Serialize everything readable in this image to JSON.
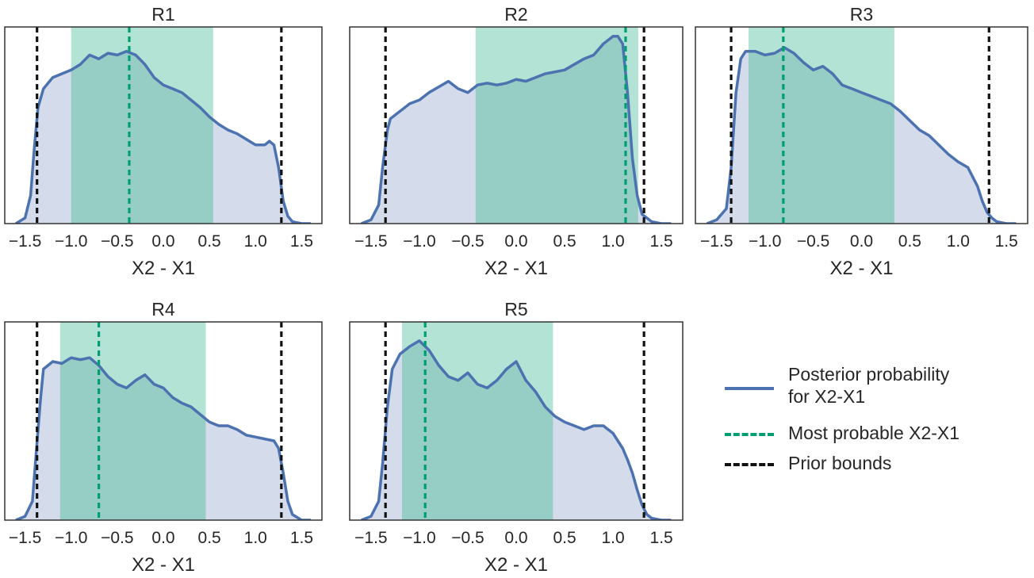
{
  "chart_data": [
    {
      "type": "area",
      "title": "R1",
      "xlabel": "X2 - X1",
      "xticks": [
        "−1.5",
        "−1.0",
        "−0.5",
        "0.0",
        "0.5",
        "1.0",
        "1.5"
      ],
      "xlim": [
        -1.72,
        1.72
      ],
      "ylim": [
        0,
        1.05
      ],
      "x": [
        -1.6,
        -1.5,
        -1.44,
        -1.4,
        -1.36,
        -1.3,
        -1.2,
        -1.1,
        -1.0,
        -0.9,
        -0.8,
        -0.7,
        -0.6,
        -0.5,
        -0.4,
        -0.35,
        -0.3,
        -0.2,
        -0.1,
        0.0,
        0.1,
        0.2,
        0.3,
        0.4,
        0.5,
        0.6,
        0.7,
        0.8,
        0.9,
        1.0,
        1.1,
        1.15,
        1.2,
        1.25,
        1.3,
        1.35,
        1.4,
        1.5,
        1.6
      ],
      "y": [
        0.0,
        0.03,
        0.15,
        0.4,
        0.62,
        0.72,
        0.78,
        0.8,
        0.82,
        0.85,
        0.9,
        0.88,
        0.91,
        0.9,
        0.92,
        0.91,
        0.9,
        0.85,
        0.78,
        0.74,
        0.72,
        0.7,
        0.66,
        0.62,
        0.57,
        0.53,
        0.5,
        0.48,
        0.45,
        0.42,
        0.42,
        0.44,
        0.42,
        0.3,
        0.12,
        0.04,
        0.01,
        0.0,
        0.0
      ],
      "shaded_interval": [
        -1.0,
        0.54
      ],
      "most_probable": -0.37,
      "prior_bounds": [
        -1.37,
        1.28
      ]
    },
    {
      "type": "area",
      "title": "R2",
      "xlabel": "X2 - X1",
      "xticks": [
        "−1.5",
        "−1.0",
        "−0.5",
        "0.0",
        "0.5",
        "1.0",
        "1.5"
      ],
      "xlim": [
        -1.72,
        1.72
      ],
      "ylim": [
        0,
        1.05
      ],
      "x": [
        -1.6,
        -1.5,
        -1.42,
        -1.38,
        -1.33,
        -1.3,
        -1.2,
        -1.1,
        -1.0,
        -0.9,
        -0.8,
        -0.7,
        -0.6,
        -0.5,
        -0.4,
        -0.3,
        -0.2,
        -0.1,
        0.0,
        0.1,
        0.2,
        0.3,
        0.4,
        0.5,
        0.6,
        0.7,
        0.8,
        0.9,
        1.0,
        1.05,
        1.1,
        1.15,
        1.2,
        1.25,
        1.3,
        1.4,
        1.5,
        1.6
      ],
      "y": [
        0.0,
        0.02,
        0.1,
        0.3,
        0.5,
        0.56,
        0.6,
        0.64,
        0.66,
        0.7,
        0.73,
        0.76,
        0.72,
        0.7,
        0.74,
        0.75,
        0.74,
        0.75,
        0.77,
        0.76,
        0.78,
        0.8,
        0.81,
        0.82,
        0.85,
        0.88,
        0.9,
        0.96,
        1.0,
        1.0,
        0.96,
        0.7,
        0.35,
        0.15,
        0.05,
        0.01,
        0.0,
        0.0
      ],
      "shaded_interval": [
        -0.42,
        1.26
      ],
      "most_probable": 1.13,
      "prior_bounds": [
        -1.35,
        1.32
      ]
    },
    {
      "type": "area",
      "title": "R3",
      "xlabel": "X2 - X1",
      "xticks": [
        "−1.5",
        "−1.0",
        "−0.5",
        "0.0",
        "0.5",
        "1.0",
        "1.5"
      ],
      "xlim": [
        -1.72,
        1.72
      ],
      "ylim": [
        0,
        1.05
      ],
      "x": [
        -1.6,
        -1.5,
        -1.4,
        -1.35,
        -1.3,
        -1.25,
        -1.2,
        -1.1,
        -1.0,
        -0.9,
        -0.8,
        -0.7,
        -0.6,
        -0.5,
        -0.4,
        -0.3,
        -0.2,
        -0.1,
        0.0,
        0.1,
        0.2,
        0.3,
        0.4,
        0.5,
        0.6,
        0.7,
        0.8,
        0.9,
        1.0,
        1.1,
        1.2,
        1.25,
        1.3,
        1.35,
        1.4,
        1.5,
        1.6
      ],
      "y": [
        0.0,
        0.02,
        0.08,
        0.3,
        0.7,
        0.88,
        0.92,
        0.92,
        0.9,
        0.91,
        0.94,
        0.91,
        0.86,
        0.82,
        0.84,
        0.8,
        0.74,
        0.72,
        0.7,
        0.68,
        0.66,
        0.64,
        0.6,
        0.55,
        0.5,
        0.47,
        0.42,
        0.37,
        0.33,
        0.3,
        0.2,
        0.12,
        0.06,
        0.03,
        0.01,
        0.0,
        0.0
      ],
      "shaded_interval": [
        -1.17,
        0.34
      ],
      "most_probable": -0.81,
      "prior_bounds": [
        -1.35,
        1.32
      ]
    },
    {
      "type": "area",
      "title": "R4",
      "xlabel": "X2 - X1",
      "xticks": [
        "−1.5",
        "−1.0",
        "−0.5",
        "0.0",
        "0.5",
        "1.0",
        "1.5"
      ],
      "xlim": [
        -1.72,
        1.72
      ],
      "ylim": [
        0,
        1.05
      ],
      "x": [
        -1.6,
        -1.5,
        -1.42,
        -1.38,
        -1.33,
        -1.3,
        -1.2,
        -1.1,
        -1.0,
        -0.9,
        -0.8,
        -0.7,
        -0.6,
        -0.5,
        -0.4,
        -0.3,
        -0.2,
        -0.1,
        0.0,
        0.1,
        0.2,
        0.3,
        0.4,
        0.5,
        0.6,
        0.7,
        0.8,
        0.9,
        1.0,
        1.1,
        1.2,
        1.25,
        1.3,
        1.35,
        1.4,
        1.5,
        1.6
      ],
      "y": [
        0.0,
        0.02,
        0.1,
        0.35,
        0.65,
        0.8,
        0.84,
        0.83,
        0.86,
        0.85,
        0.86,
        0.82,
        0.76,
        0.72,
        0.7,
        0.74,
        0.77,
        0.72,
        0.7,
        0.65,
        0.62,
        0.6,
        0.56,
        0.52,
        0.5,
        0.5,
        0.48,
        0.45,
        0.44,
        0.43,
        0.42,
        0.38,
        0.25,
        0.1,
        0.03,
        0.0,
        0.0
      ],
      "shaded_interval": [
        -1.12,
        0.46
      ],
      "most_probable": -0.7,
      "prior_bounds": [
        -1.37,
        1.28
      ]
    },
    {
      "type": "area",
      "title": "R5",
      "xlabel": "X2 - X1",
      "xticks": [
        "−1.5",
        "−1.0",
        "−0.5",
        "0.0",
        "0.5",
        "1.0",
        "1.5"
      ],
      "xlim": [
        -1.72,
        1.72
      ],
      "ylim": [
        0,
        1.05
      ],
      "x": [
        -1.6,
        -1.5,
        -1.42,
        -1.38,
        -1.33,
        -1.28,
        -1.2,
        -1.1,
        -1.0,
        -0.9,
        -0.8,
        -0.7,
        -0.6,
        -0.5,
        -0.4,
        -0.3,
        -0.2,
        -0.1,
        0.0,
        0.1,
        0.2,
        0.3,
        0.4,
        0.5,
        0.6,
        0.7,
        0.8,
        0.9,
        1.0,
        1.1,
        1.15,
        1.2,
        1.25,
        1.3,
        1.35,
        1.4,
        1.5,
        1.6
      ],
      "y": [
        0.0,
        0.02,
        0.1,
        0.3,
        0.6,
        0.8,
        0.88,
        0.92,
        0.95,
        0.9,
        0.82,
        0.76,
        0.74,
        0.78,
        0.72,
        0.7,
        0.74,
        0.8,
        0.84,
        0.74,
        0.68,
        0.6,
        0.55,
        0.52,
        0.5,
        0.48,
        0.5,
        0.5,
        0.46,
        0.38,
        0.32,
        0.25,
        0.16,
        0.08,
        0.03,
        0.01,
        0.0,
        0.0
      ],
      "shaded_interval": [
        -1.18,
        0.38
      ],
      "most_probable": -0.94,
      "prior_bounds": [
        -1.35,
        1.32
      ]
    }
  ],
  "legend": {
    "items": [
      {
        "label": "Posterior probability\n for X2-X1",
        "style": "solid"
      },
      {
        "label": "Most probable X2-X1",
        "style": "dashed"
      },
      {
        "label": "Prior bounds",
        "style": "dashed"
      }
    ]
  },
  "colors": {
    "posterior_line": "#4c72b0",
    "posterior_fill": "#d4dcec",
    "interval_fill": "#96cdc5",
    "interval_fill_light": "#b3e3d5",
    "most_probable": "#009e73",
    "prior_bounds": "#111111",
    "frame": "#333333",
    "text": "#262626"
  }
}
